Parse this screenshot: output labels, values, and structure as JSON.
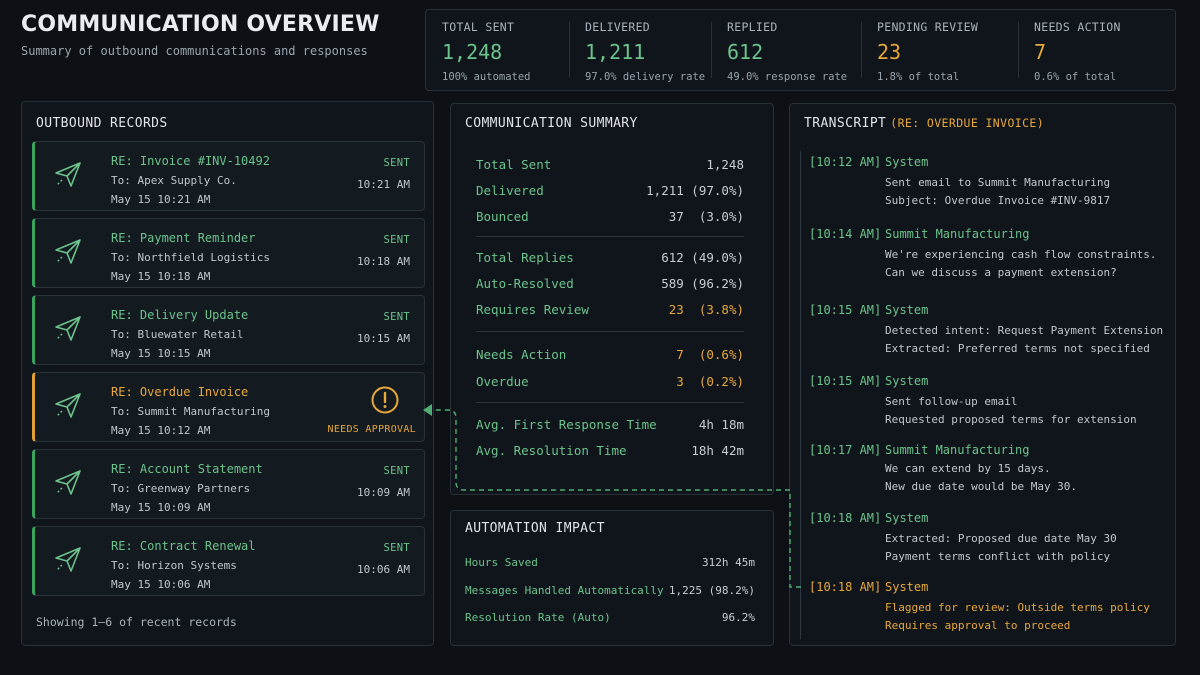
{
  "header": {
    "title": "COMMUNICATION OVERVIEW",
    "subtitle": "Summary of outbound communications and responses"
  },
  "stats": [
    {
      "label": "TOTAL SENT",
      "value": "1,248",
      "sub": "100% automated",
      "color": "#6cc38c"
    },
    {
      "label": "DELIVERED",
      "value": "1,211",
      "sub": "97.0% delivery rate",
      "color": "#6cc38c"
    },
    {
      "label": "REPLIED",
      "value": "612",
      "sub": "49.0% response rate",
      "color": "#6cc38c"
    },
    {
      "label": "PENDING REVIEW",
      "value": "23",
      "sub": "1.8% of total",
      "color": "#e7a83c"
    },
    {
      "label": "NEEDS ACTION",
      "value": "7",
      "sub": "0.6% of total",
      "color": "#e7a83c"
    }
  ],
  "outbound": {
    "title": "OUTBOUND RECORDS",
    "footer": "Showing 1–6 of recent records",
    "records": [
      {
        "title": "RE: Invoice #INV-10492",
        "to": "To: Apex Supply Co.",
        "date": "May 15 10:21 AM",
        "status": "SENT",
        "time": "10:21 AM",
        "icon": "send-icon"
      },
      {
        "title": "RE: Payment Reminder",
        "to": "To: Northfield Logistics",
        "date": "May 15 10:18 AM",
        "status": "SENT",
        "time": "10:18 AM",
        "icon": "send-icon"
      },
      {
        "title": "RE: Delivery Update",
        "to": "To: Bluewater Retail",
        "date": "May 15 10:15 AM",
        "status": "SENT",
        "time": "10:15 AM",
        "icon": "send-icon"
      },
      {
        "title": "RE: Overdue Invoice",
        "to": "To: Summit Manufacturing",
        "date": "May 15 10:12 AM",
        "status": "NEEDS APPROVAL",
        "time": "",
        "icon": "warning-icon"
      },
      {
        "title": "RE: Account Statement",
        "to": "To: Greenway Partners",
        "date": "May 15 10:09 AM",
        "status": "SENT",
        "time": "10:09 AM",
        "icon": "send-icon"
      },
      {
        "title": "RE: Contract Renewal",
        "to": "To: Horizon Systems",
        "date": "May 15 10:06 AM",
        "status": "SENT",
        "time": "10:06 AM",
        "icon": "send-icon"
      }
    ]
  },
  "summary": {
    "title": "COMMUNICATION SUMMARY",
    "rows": [
      {
        "label": "Total Sent",
        "value": "1,248"
      },
      {
        "label": "Delivered",
        "value": "1,211 (97.0%)"
      },
      {
        "label": "Bounced",
        "value": "37  (3.0%)"
      },
      {
        "label": "Total Replies",
        "value": "612 (49.0%)"
      },
      {
        "label": "Auto-Resolved",
        "value": "589 (96.2%)"
      },
      {
        "label": "Requires Review",
        "value": "23  (3.8%)",
        "highlight": "#e7a83c"
      },
      {
        "label": "Needs Action",
        "value": "7  (0.6%)",
        "highlight": "#e7a83c"
      },
      {
        "label": "Overdue",
        "value": "3  (0.2%)",
        "highlight": "#e7a83c"
      },
      {
        "label": "Avg. First Response Time",
        "value": "4h 18m"
      },
      {
        "label": "Avg. Resolution Time",
        "value": "18h 42m"
      }
    ]
  },
  "automation": {
    "title": "AUTOMATION IMPACT",
    "rows": [
      {
        "label": "Hours Saved",
        "value": "312h 45m"
      },
      {
        "label": "Messages Handled Automatically",
        "value": "1,225 (98.2%)"
      },
      {
        "label": "Resolution Rate (Auto)",
        "value": "96.2%"
      }
    ]
  },
  "transcript": {
    "title": "TRANSCRIPT",
    "subject": "(RE: OVERDUE INVOICE)",
    "messages": [
      {
        "time": "[10:12 AM]",
        "sender": "System",
        "lines": [
          "Sent email to Summit Manufacturing",
          "Subject: Overdue Invoice #INV-9817"
        ]
      },
      {
        "time": "[10:14 AM]",
        "sender": "Summit Manufacturing",
        "lines": [
          "We're experiencing cash flow constraints.",
          "Can we discuss a payment extension?"
        ]
      },
      {
        "time": "[10:15 AM]",
        "sender": "System",
        "lines": [
          "Detected intent: Request Payment Extension",
          "Extracted: Preferred terms not specified"
        ]
      },
      {
        "time": "[10:15 AM]",
        "sender": "System",
        "lines": [
          "Sent follow-up email",
          "Requested proposed terms for extension"
        ]
      },
      {
        "time": "[10:17 AM]",
        "sender": "Summit Manufacturing",
        "lines": [
          "We can extend by 15 days.",
          "New due date would be May 30."
        ]
      },
      {
        "time": "[10:18 AM]",
        "sender": "System",
        "lines": [
          "Extracted: Proposed due date May 30",
          "Payment terms conflict with policy"
        ]
      },
      {
        "time": "[10:18 AM]",
        "sender": "System",
        "lines": [
          "Flagged for review: Outside terms policy",
          "Requires approval to proceed"
        ],
        "alert": true
      }
    ]
  },
  "colors": {
    "accent_green": "#6cc38c",
    "accent_amber": "#e7a83c",
    "background": "#0d1116",
    "panel": "#10151b"
  }
}
